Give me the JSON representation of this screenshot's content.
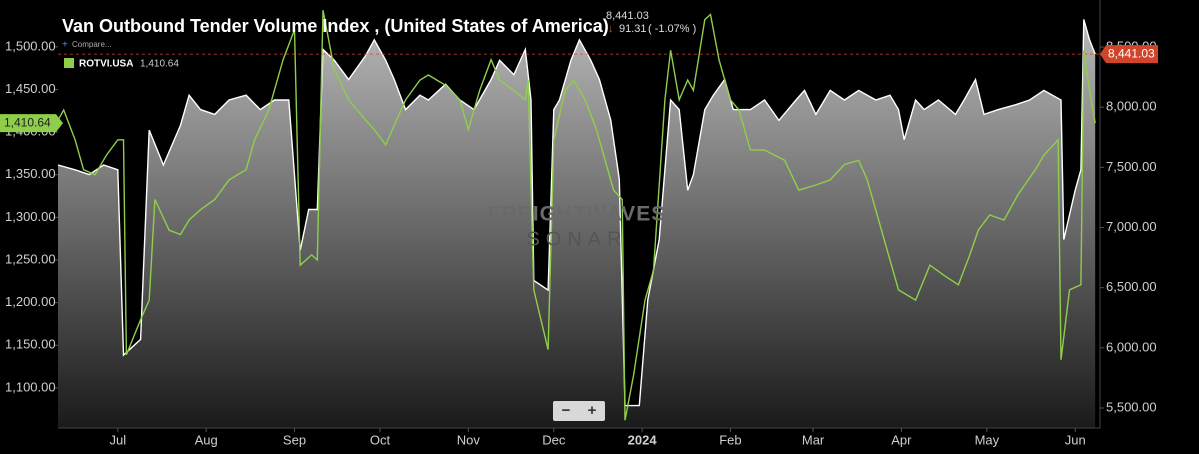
{
  "header": {
    "title": "Van Outbound Tender Volume Index , (United States of America)",
    "value": "8,441.03",
    "change": "91.31",
    "change_pct": "( -1.07% )",
    "compare": "Compare...",
    "watermark": "FREIGHTWAVES",
    "watermark_sub": "SONAR",
    "zoom_out": "−",
    "zoom_in": "+"
  },
  "chart_data": {
    "type": "line",
    "xlim": [
      -21,
      344
    ],
    "xticks": [
      {
        "value": 0,
        "label": "Jul"
      },
      {
        "value": 31,
        "label": "Aug"
      },
      {
        "value": 62,
        "label": "Sep"
      },
      {
        "value": 92,
        "label": "Oct"
      },
      {
        "value": 123,
        "label": "Nov"
      },
      {
        "value": 153,
        "label": "Dec"
      },
      {
        "value": 184,
        "label": "2024"
      },
      {
        "value": 215,
        "label": "Feb"
      },
      {
        "value": 244,
        "label": "Mar"
      },
      {
        "value": 275,
        "label": "Apr"
      },
      {
        "value": 305,
        "label": "May"
      },
      {
        "value": 336,
        "label": "Jun"
      }
    ],
    "ylim": [
      1053,
      1555
    ],
    "yticks": [
      {
        "value": 1100,
        "label": "1,100.00"
      },
      {
        "value": 1150,
        "label": "1,150.00"
      },
      {
        "value": 1200,
        "label": "1,200.00"
      },
      {
        "value": 1250,
        "label": "1,250.00"
      },
      {
        "value": 1300,
        "label": "1,300.00"
      },
      {
        "value": 1350,
        "label": "1,350.00"
      },
      {
        "value": 1400,
        "label": "1,400.00"
      },
      {
        "value": 1450,
        "label": "1,450.00"
      },
      {
        "value": 1500,
        "label": "1,500.00"
      }
    ],
    "y2lim": [
      5334,
      8891
    ],
    "y2ticks": [
      {
        "value": 5500,
        "label": "5,500.00"
      },
      {
        "value": 6000,
        "label": "6,000.00"
      },
      {
        "value": 6500,
        "label": "6,500.00"
      },
      {
        "value": 7000,
        "label": "7,000.00"
      },
      {
        "value": 7500,
        "label": "7,500.00"
      },
      {
        "value": 8000,
        "label": "8,000.00"
      },
      {
        "value": 8500,
        "label": "8,500.00"
      }
    ],
    "series": [
      {
        "color": "#ffffff",
        "axis": "y2",
        "area": true,
        "last_label": "8,441.03",
        "badge_color": "#d0452a",
        "x": [
          -21,
          -15,
          -10,
          -5,
          0,
          2,
          8,
          11,
          16,
          22,
          25,
          29,
          34,
          39,
          45,
          50,
          55,
          60,
          64,
          67,
          70,
          72,
          76,
          81,
          87,
          90,
          94,
          97,
          101,
          106,
          109,
          115,
          120,
          125,
          131,
          134,
          139,
          143,
          145,
          146,
          151,
          153,
          155,
          159,
          162,
          166,
          169,
          173,
          176,
          178,
          183,
          186,
          190,
          194,
          197,
          200,
          202,
          206,
          209,
          213,
          216,
          222,
          227,
          232,
          238,
          241,
          245,
          250,
          255,
          260,
          266,
          271,
          274,
          276,
          280,
          283,
          288,
          294,
          297,
          301,
          304,
          309,
          315,
          320,
          325,
          331,
          332,
          336,
          338,
          339,
          341,
          343
        ],
        "values": [
          7520,
          7480,
          7440,
          7520,
          7480,
          5940,
          6070,
          7810,
          7520,
          7850,
          8100,
          7980,
          7940,
          8060,
          8100,
          7980,
          8060,
          8060,
          6810,
          7150,
          7150,
          8480,
          8390,
          8230,
          8430,
          8560,
          8390,
          8230,
          7980,
          8100,
          8060,
          8190,
          8060,
          7980,
          8230,
          8390,
          8270,
          8480,
          8060,
          6560,
          6480,
          7980,
          8060,
          8390,
          8560,
          8390,
          8230,
          7890,
          7400,
          5520,
          5520,
          6400,
          6900,
          8060,
          7980,
          7310,
          7440,
          7980,
          8100,
          8230,
          7980,
          7980,
          8060,
          7890,
          8060,
          8140,
          7940,
          8140,
          8060,
          8140,
          8060,
          8100,
          7980,
          7730,
          8060,
          7980,
          8060,
          7940,
          8060,
          8230,
          7940,
          7980,
          8020,
          8060,
          8140,
          8060,
          6900,
          7310,
          7480,
          8730,
          8560,
          8441.03
        ]
      },
      {
        "name": "ROTVI.USA",
        "color": "#8fce4a",
        "last_label": "1,410.64",
        "x": [
          -21,
          -19,
          -15,
          -12,
          -8,
          -4,
          0,
          2,
          3,
          8,
          11,
          13,
          18,
          22,
          25,
          29,
          34,
          39,
          45,
          48,
          53,
          58,
          62,
          64,
          68,
          70,
          72,
          76,
          81,
          87,
          90,
          94,
          97,
          101,
          106,
          109,
          115,
          120,
          123,
          127,
          131,
          134,
          139,
          143,
          144,
          146,
          151,
          153,
          157,
          160,
          164,
          168,
          171,
          174,
          177,
          178,
          181,
          185,
          188,
          192,
          194,
          197,
          200,
          202,
          206,
          208,
          211,
          215,
          218,
          222,
          227,
          234,
          239,
          245,
          250,
          255,
          260,
          263,
          267,
          271,
          274,
          280,
          285,
          290,
          295,
          299,
          302,
          306,
          311,
          316,
          322,
          325,
          330,
          331,
          334,
          338,
          339,
          341,
          343
        ],
        "values": [
          1414,
          1426,
          1391,
          1356,
          1350,
          1373,
          1391,
          1391,
          1139,
          1180,
          1203,
          1321,
          1285,
          1280,
          1297,
          1309,
          1321,
          1344,
          1356,
          1391,
          1426,
          1485,
          1520,
          1244,
          1256,
          1250,
          1543,
          1473,
          1438,
          1414,
          1403,
          1385,
          1408,
          1438,
          1461,
          1467,
          1455,
          1438,
          1403,
          1449,
          1485,
          1461,
          1449,
          1438,
          1461,
          1215,
          1145,
          1391,
          1449,
          1461,
          1438,
          1403,
          1367,
          1332,
          1321,
          1062,
          1115,
          1203,
          1238,
          1438,
          1496,
          1438,
          1461,
          1449,
          1532,
          1538,
          1485,
          1438,
          1426,
          1379,
          1379,
          1367,
          1332,
          1338,
          1344,
          1362,
          1367,
          1344,
          1297,
          1250,
          1215,
          1203,
          1244,
          1232,
          1221,
          1256,
          1285,
          1303,
          1297,
          1327,
          1356,
          1373,
          1391,
          1133,
          1215,
          1221,
          1496,
          1449,
          1410.64
        ]
      }
    ]
  }
}
